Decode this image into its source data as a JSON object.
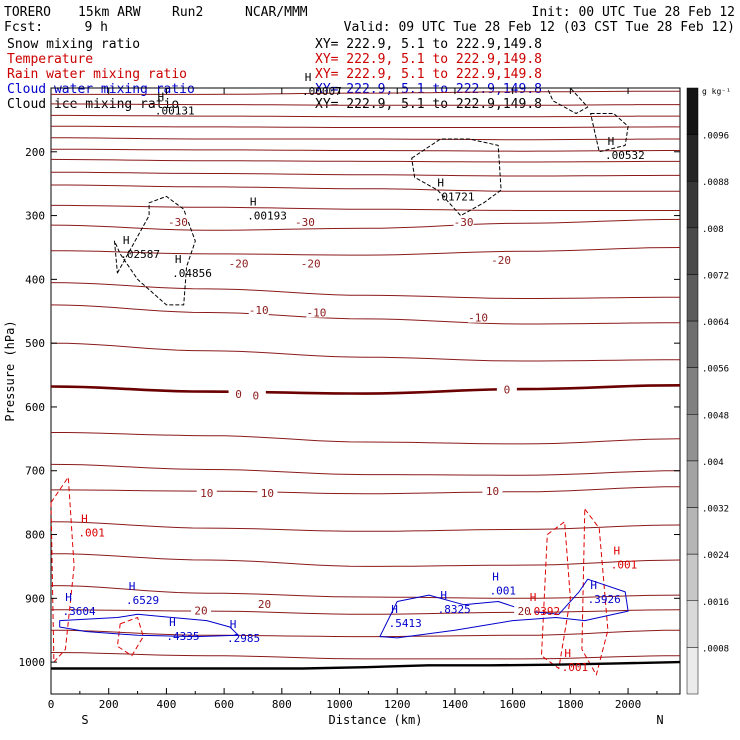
{
  "header": {
    "model": "TORERO",
    "grid": "15km ARW",
    "run": "Run2",
    "org": "NCAR/MMM",
    "init": "Init: 00 UTC Tue 28 Feb 12",
    "fcst_label": "Fcst:",
    "fcst_value": "9 h",
    "valid": "Valid: 09 UTC Tue 28 Feb 12 (03 CST Tue 28 Feb 12)"
  },
  "fields": [
    {
      "name": "Snow mixing ratio",
      "xy": "XY= 222.9,   5.1 to 222.9,149.8",
      "color": "#000000"
    },
    {
      "name": "Temperature",
      "xy": "XY= 222.9,   5.1 to 222.9,149.8",
      "color": "#cc0000"
    },
    {
      "name": "Rain water mixing ratio",
      "xy": "XY= 222.9,   5.1 to 222.9,149.8",
      "color": "#cc0000"
    },
    {
      "name": "Cloud water mixing ratio",
      "xy": "XY= 222.9,   5.1 to 222.9,149.8",
      "color": "#0000cc"
    },
    {
      "name": "Cloud ice mixing ratio",
      "xy": "XY= 222.9,   5.1 to 222.9,149.8",
      "color": "#000000"
    }
  ],
  "colors": {
    "temperature": "#8b1a1a",
    "freezing": "#6b0000",
    "rain": "#dd0000",
    "cloud_water": "#0000cc",
    "snow_ice": "#000000",
    "ground": "#000000"
  },
  "chart_data": {
    "type": "cross-section contour",
    "xlabel": "Distance (km)",
    "ylabel": "Pressure (hPa)",
    "xlim": [
      0,
      2180
    ],
    "ylim": [
      1050,
      100
    ],
    "x_ticks": [
      0,
      200,
      400,
      600,
      800,
      1000,
      1200,
      1400,
      1600,
      1800,
      2000
    ],
    "y_ticks": [
      200,
      300,
      400,
      500,
      600,
      700,
      800,
      900,
      1000
    ],
    "end_labels": {
      "left": "S",
      "right": "N"
    },
    "colorbar": {
      "unit": "g kg⁻¹",
      "levels": [
        ".0096",
        ".0088",
        ".008",
        ".0072",
        ".0064",
        ".0056",
        ".0048",
        ".004",
        ".0032",
        ".0024",
        ".0016",
        ".0008"
      ]
    },
    "isotherms": [
      {
        "p": [
          110,
          110,
          108,
          106,
          105
        ],
        "label": ""
      },
      {
        "p": [
          125,
          126,
          127,
          127,
          126
        ],
        "label": ""
      },
      {
        "p": [
          143,
          144,
          145,
          145,
          144
        ],
        "label": ""
      },
      {
        "p": [
          160,
          161,
          162,
          162,
          161
        ],
        "label": ""
      },
      {
        "p": [
          178,
          180,
          180,
          181,
          180
        ],
        "label": ""
      },
      {
        "p": [
          196,
          197,
          198,
          199,
          198
        ],
        "label": ""
      },
      {
        "p": [
          212,
          214,
          215,
          216,
          215
        ],
        "label": ""
      },
      {
        "p": [
          232,
          234,
          236,
          238,
          237
        ],
        "label": ""
      },
      {
        "p": [
          252,
          255,
          258,
          262,
          262
        ],
        "label": ""
      },
      {
        "p": [
          284,
          287,
          290,
          292,
          292
        ],
        "label": "-30"
      },
      {
        "p": [
          315,
          323,
          320,
          312,
          306
        ],
        "label": ""
      },
      {
        "p": [
          355,
          360,
          362,
          356,
          350
        ],
        "label": "-20"
      },
      {
        "p": [
          405,
          415,
          425,
          430,
          428
        ],
        "label": ""
      },
      {
        "p": [
          440,
          452,
          462,
          470,
          468
        ],
        "label": "-10"
      },
      {
        "p": [
          500,
          512,
          522,
          528,
          526
        ],
        "label": ""
      },
      {
        "p": [
          568,
          576,
          579,
          572,
          566
        ],
        "label": "0",
        "freezing": true
      },
      {
        "p": [
          640,
          645,
          655,
          658,
          650
        ],
        "label": ""
      },
      {
        "p": [
          690,
          698,
          706,
          707,
          700
        ],
        "label": ""
      },
      {
        "p": [
          730,
          732,
          736,
          733,
          725
        ],
        "label": "10"
      },
      {
        "p": [
          780,
          790,
          795,
          792,
          785
        ],
        "label": ""
      },
      {
        "p": [
          830,
          840,
          850,
          848,
          840
        ],
        "label": ""
      },
      {
        "p": [
          880,
          892,
          898,
          900,
          895
        ],
        "label": ""
      },
      {
        "p": [
          918,
          920,
          925,
          922,
          918
        ],
        "label": "20"
      },
      {
        "p": [
          950,
          958,
          960,
          958,
          950
        ],
        "label": ""
      },
      {
        "p": [
          985,
          990,
          995,
          995,
          990
        ],
        "label": ""
      }
    ],
    "isotherm_labels": [
      {
        "text": "-30",
        "x": 440,
        "p": 310
      },
      {
        "text": "-30",
        "x": 880,
        "p": 310
      },
      {
        "text": "-30",
        "x": 1430,
        "p": 310
      },
      {
        "text": "-20",
        "x": 650,
        "p": 375
      },
      {
        "text": "-20",
        "x": 900,
        "p": 375
      },
      {
        "text": "-20",
        "x": 1560,
        "p": 370
      },
      {
        "text": "-10",
        "x": 720,
        "p": 448
      },
      {
        "text": "-10",
        "x": 920,
        "p": 452
      },
      {
        "text": "-10",
        "x": 1480,
        "p": 460
      },
      {
        "text": "0",
        "x": 650,
        "p": 580
      },
      {
        "text": "0",
        "x": 710,
        "p": 582
      },
      {
        "text": "0",
        "x": 1580,
        "p": 573
      },
      {
        "text": "10",
        "x": 540,
        "p": 735
      },
      {
        "text": "10",
        "x": 750,
        "p": 735
      },
      {
        "text": "10",
        "x": 1530,
        "p": 732
      },
      {
        "text": "20",
        "x": 520,
        "p": 919
      },
      {
        "text": "20",
        "x": 740,
        "p": 909
      },
      {
        "text": "20",
        "x": 1640,
        "p": 920
      }
    ],
    "ground_pressure": [
      1010,
      1010,
      1010,
      1010,
      1010,
      1008,
      1005,
      1005,
      1004,
      1002,
      1000
    ],
    "maxima": [
      {
        "text": ".00131",
        "x": 360,
        "p": 135,
        "field": "snow"
      },
      {
        "text": ".00193",
        "x": 680,
        "p": 300,
        "field": "snow"
      },
      {
        "text": ".02587",
        "x": 240,
        "p": 360,
        "field": "snow"
      },
      {
        "text": ".04856",
        "x": 420,
        "p": 390,
        "field": "snow"
      },
      {
        "text": ".01721",
        "x": 1330,
        "p": 270,
        "field": "snow"
      },
      {
        "text": ".00532",
        "x": 1920,
        "p": 205,
        "field": "snow"
      },
      {
        "text": ".00007",
        "x": 870,
        "p": 105,
        "field": "snow"
      },
      {
        "text": ".001",
        "x": 95,
        "p": 797,
        "field": "rain"
      },
      {
        "text": ".001",
        "x": 1940,
        "p": 847,
        "field": "rain"
      },
      {
        "text": ".001",
        "x": 1770,
        "p": 1008,
        "field": "rain"
      },
      {
        "text": ".0392",
        "x": 1650,
        "p": 920,
        "field": "rain"
      },
      {
        "text": ".6529",
        "x": 260,
        "p": 903,
        "field": "cloud"
      },
      {
        "text": ".4335",
        "x": 400,
        "p": 959,
        "field": "cloud"
      },
      {
        "text": ".2985",
        "x": 610,
        "p": 962,
        "field": "cloud"
      },
      {
        "text": ".5413",
        "x": 1170,
        "p": 939,
        "field": "cloud"
      },
      {
        "text": ".8325",
        "x": 1340,
        "p": 917,
        "field": "cloud"
      },
      {
        "text": ".3926",
        "x": 1860,
        "p": 901,
        "field": "cloud"
      },
      {
        "text": ".001",
        "x": 1520,
        "p": 888,
        "field": "cloud"
      },
      {
        "text": ".3604",
        "x": 40,
        "p": 920,
        "field": "cloud"
      }
    ],
    "ice_clouds": [
      {
        "x": [
          230,
          340,
          340,
          400,
          460,
          500,
          470,
          460,
          400,
          300,
          240,
          220
        ],
        "p": [
          390,
          300,
          280,
          270,
          290,
          340,
          380,
          440,
          440,
          400,
          360,
          340
        ]
      },
      {
        "x": [
          1250,
          1350,
          1450,
          1550,
          1560,
          1500,
          1420,
          1340,
          1260
        ],
        "p": [
          210,
          180,
          180,
          190,
          260,
          280,
          300,
          260,
          240
        ]
      },
      {
        "x": [
          1870,
          1950,
          2000,
          1990,
          1900
        ],
        "p": [
          140,
          140,
          160,
          190,
          200
        ]
      },
      {
        "x": [
          1720,
          1800,
          1860,
          1820,
          1740
        ],
        "p": [
          100,
          100,
          130,
          140,
          120
        ]
      }
    ],
    "cloud_water_regions": [
      {
        "x": [
          30,
          230,
          300,
          420,
          540,
          620,
          650,
          500,
          300,
          120,
          30
        ],
        "p": [
          935,
          930,
          925,
          930,
          935,
          945,
          958,
          960,
          958,
          952,
          945
        ]
      },
      {
        "x": [
          1140,
          1200,
          1310,
          1430,
          1550,
          1650,
          1760,
          1830,
          1860,
          1990,
          2000,
          1850,
          1750,
          1600,
          1400,
          1200,
          1140
        ],
        "p": [
          960,
          905,
          895,
          910,
          905,
          920,
          925,
          890,
          870,
          890,
          920,
          935,
          930,
          935,
          950,
          962,
          960
        ]
      }
    ],
    "rain_regions": [
      {
        "x": [
          0,
          60,
          80,
          50,
          10
        ],
        "p": [
          750,
          710,
          850,
          980,
          1000
        ]
      },
      {
        "x": [
          1720,
          1780,
          1800,
          1760,
          1700
        ],
        "p": [
          800,
          780,
          900,
          1010,
          990
        ]
      },
      {
        "x": [
          1850,
          1900,
          1930,
          1890,
          1840
        ],
        "p": [
          760,
          790,
          950,
          1020,
          980
        ]
      },
      {
        "x": [
          240,
          300,
          320,
          280,
          230
        ],
        "p": [
          940,
          930,
          960,
          990,
          975
        ]
      }
    ]
  }
}
